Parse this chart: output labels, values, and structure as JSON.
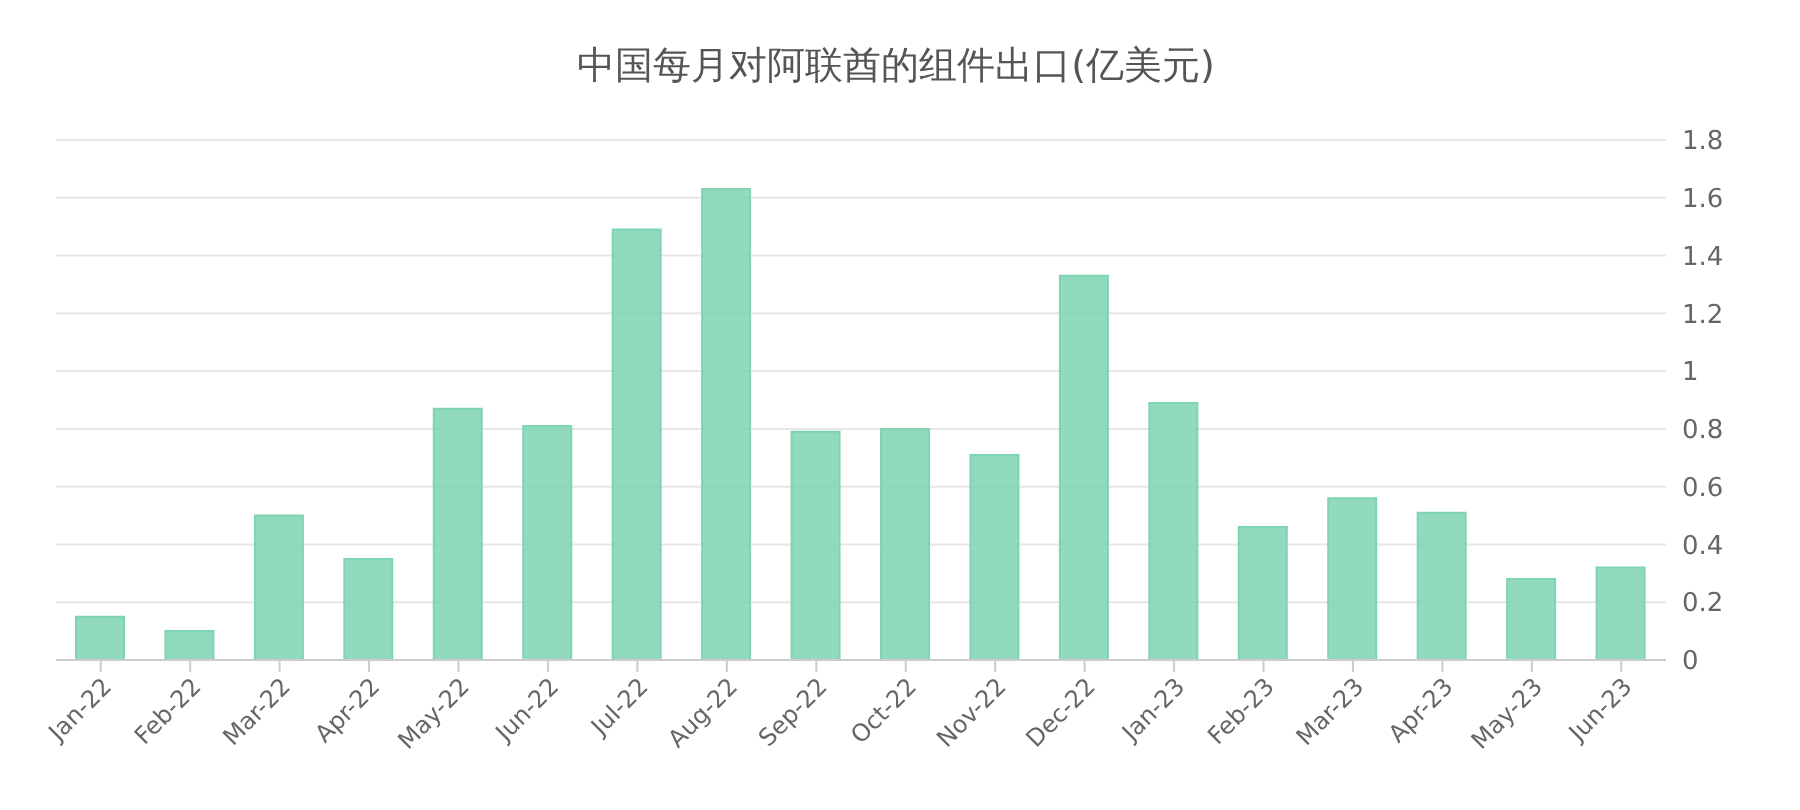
{
  "chart_data": {
    "type": "bar",
    "title": "中国每月对阿联酋的组件出口(亿美元)",
    "categories": [
      "Jan-22",
      "Feb-22",
      "Mar-22",
      "Apr-22",
      "May-22",
      "Jun-22",
      "Jul-22",
      "Aug-22",
      "Sep-22",
      "Oct-22",
      "Nov-22",
      "Dec-22",
      "Jan-23",
      "Feb-23",
      "Mar-23",
      "Apr-23",
      "May-23",
      "Jun-23"
    ],
    "values": [
      0.15,
      0.1,
      0.5,
      0.35,
      0.87,
      0.81,
      1.49,
      1.63,
      0.79,
      0.8,
      0.71,
      1.33,
      0.89,
      0.46,
      0.56,
      0.51,
      0.28,
      0.32
    ],
    "color": "#7fd4b2",
    "ylim": [
      0,
      1.8
    ],
    "yticks": [
      0,
      0.2,
      0.4,
      0.6,
      0.8,
      1,
      1.2,
      1.4,
      1.6,
      1.8
    ],
    "grid": "y",
    "legend": false
  }
}
